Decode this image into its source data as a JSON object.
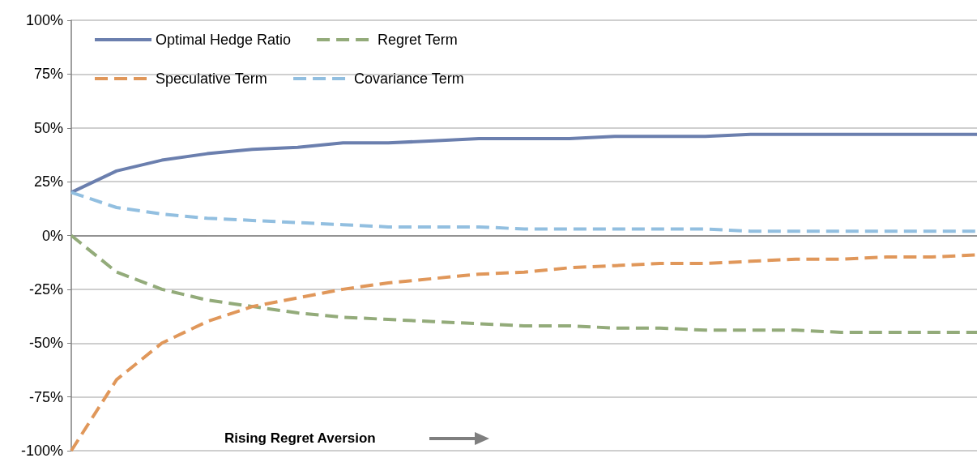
{
  "chart_data": {
    "type": "line",
    "categories": [
      null,
      null,
      null,
      null,
      null,
      null,
      null,
      null,
      null,
      null,
      null,
      null,
      null,
      null,
      null,
      null,
      null,
      null,
      null,
      null,
      null
    ],
    "series": [
      {
        "name": "Optimal Hedge Ratio",
        "color": "#6b7fae",
        "line_style": "solid",
        "values": [
          20,
          30,
          35,
          38,
          40,
          41,
          43,
          43,
          44,
          45,
          45,
          45,
          46,
          46,
          46,
          47,
          47,
          47,
          47,
          47,
          47
        ]
      },
      {
        "name": "Regret Term",
        "color": "#93ab7a",
        "line_style": "dashed",
        "values": [
          0,
          -17,
          -25,
          -30,
          -33,
          -36,
          -38,
          -39,
          -40,
          -41,
          -42,
          -42,
          -43,
          -43,
          -44,
          -44,
          -44,
          -45,
          -45,
          -45,
          -45
        ]
      },
      {
        "name": "Speculative Term",
        "color": "#e0975a",
        "line_style": "dashed",
        "values": [
          -100,
          -67,
          -50,
          -40,
          -33,
          -29,
          -25,
          -22,
          -20,
          -18,
          -17,
          -15,
          -14,
          -13,
          -13,
          -12,
          -11,
          -11,
          -10,
          -10,
          -9
        ]
      },
      {
        "name": "Covariance Term",
        "color": "#92bfe0",
        "line_style": "dashed",
        "values": [
          20,
          13,
          10,
          8,
          7,
          6,
          5,
          4,
          4,
          4,
          3,
          3,
          3,
          3,
          3,
          2,
          2,
          2,
          2,
          2,
          2
        ]
      }
    ],
    "ylim": [
      -100,
      100
    ],
    "yticks": [
      {
        "value": -100,
        "label": "-100%"
      },
      {
        "value": -75,
        "label": "-75%"
      },
      {
        "value": -50,
        "label": "-50%"
      },
      {
        "value": -25,
        "label": "-25%"
      },
      {
        "value": 0,
        "label": "0%"
      },
      {
        "value": 25,
        "label": "25%"
      },
      {
        "value": 50,
        "label": "50%"
      },
      {
        "value": 75,
        "label": "75%"
      },
      {
        "value": 100,
        "label": "100%"
      }
    ],
    "grid": "y",
    "legend": "top left",
    "marker": "none",
    "tick_labels": "y",
    "annotations": [
      "Rising Regret Aversion"
    ]
  }
}
